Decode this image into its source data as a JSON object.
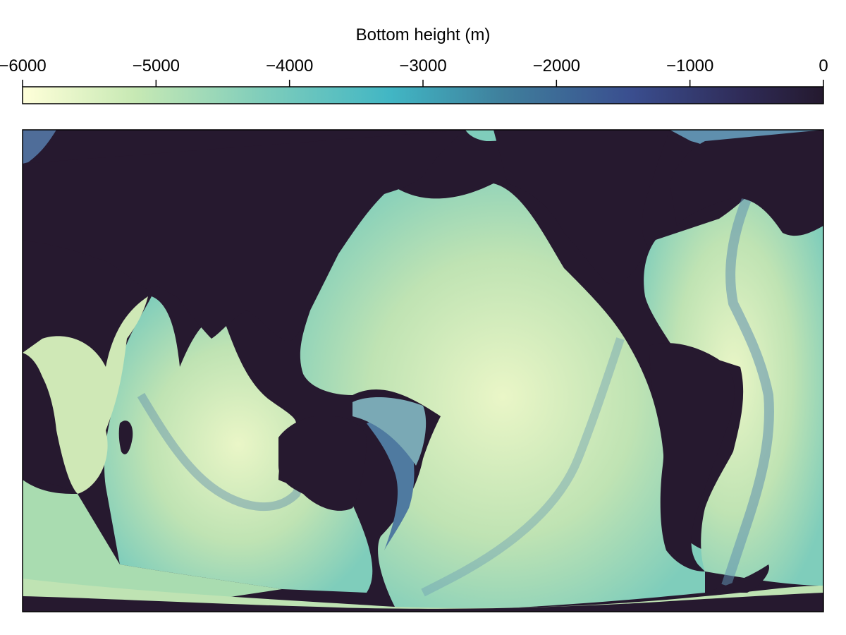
{
  "chart_data": {
    "type": "heatmap",
    "title": "",
    "xlabel": "",
    "ylabel": "",
    "colorbar": {
      "label": "Bottom height (m)",
      "range": [
        -6000,
        0
      ],
      "ticks": [
        -6000,
        -5000,
        -4000,
        -3000,
        -2000,
        -1000,
        0
      ],
      "tick_labels": [
        "−6000",
        "−5000",
        "−4000",
        "−3000",
        "−2000",
        "−1000",
        "0"
      ],
      "orientation": "horizontal",
      "placement": "top",
      "colormap": [
        "#ffffd9",
        "#c7e9b4",
        "#7fcdbb",
        "#41b6c4",
        "#3f7f9c",
        "#3a4e8f",
        "#2f2b57",
        "#24192e"
      ]
    },
    "map": {
      "projection": "equirectangular",
      "longitude_range": [
        20,
        380
      ],
      "latitude_range": [
        -80,
        90
      ],
      "land_color": "#26192f",
      "grid": false
    }
  }
}
